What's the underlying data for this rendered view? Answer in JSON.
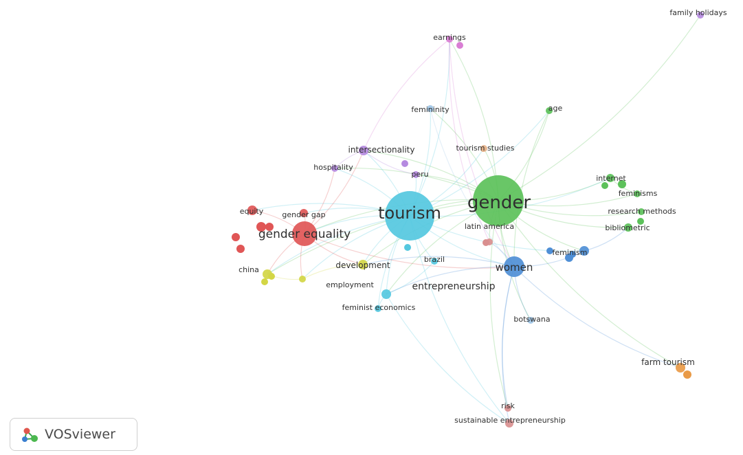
{
  "app": "VOSviewer",
  "logo": {
    "text": "VOSviewer",
    "icon": "vosviewer-network-icon"
  },
  "clusters": {
    "red": "#e05656",
    "cyan": "#55c8df",
    "green": "#5cc15a",
    "blue": "#4f8fd6",
    "purple": "#b58ae0",
    "yellow": "#d3d645",
    "pink": "#d97ed4",
    "orange": "#e99a47",
    "lightblue": "#9fc6e6",
    "peach": "#e6b48c",
    "rose": "#d98f8f"
  },
  "nodes": [
    {
      "id": "gender",
      "label": "gender",
      "cluster": "green",
      "weight": 10
    },
    {
      "id": "tourism",
      "label": "tourism",
      "cluster": "cyan",
      "weight": 9
    },
    {
      "id": "gender_equality",
      "label": "gender equality",
      "cluster": "red",
      "weight": 6
    },
    {
      "id": "women",
      "label": "women",
      "cluster": "blue",
      "weight": 5
    },
    {
      "id": "entrepreneurship",
      "label": "entrepreneurship",
      "cluster": "cyan",
      "weight": 4
    },
    {
      "id": "development",
      "label": "development",
      "cluster": "yellow",
      "weight": 3
    },
    {
      "id": "intersectionality",
      "label": "intersectionality",
      "cluster": "purple",
      "weight": 3
    },
    {
      "id": "feminism",
      "label": "feminism",
      "cluster": "blue",
      "weight": 3
    },
    {
      "id": "internet",
      "label": "internet",
      "cluster": "green",
      "weight": 3
    },
    {
      "id": "earnings",
      "label": "earnings",
      "cluster": "pink",
      "weight": 2
    },
    {
      "id": "femininity",
      "label": "femininity",
      "cluster": "lightblue",
      "weight": 2
    },
    {
      "id": "age",
      "label": "age",
      "cluster": "green",
      "weight": 2
    },
    {
      "id": "tourism_studies",
      "label": "tourism studies",
      "cluster": "peach",
      "weight": 2
    },
    {
      "id": "hospitality",
      "label": "hospitality",
      "cluster": "purple",
      "weight": 2
    },
    {
      "id": "peru",
      "label": "peru",
      "cluster": "purple",
      "weight": 2
    },
    {
      "id": "equity",
      "label": "equity",
      "cluster": "red",
      "weight": 2
    },
    {
      "id": "gender_gap",
      "label": "gender gap",
      "cluster": "red",
      "weight": 2
    },
    {
      "id": "latin_america",
      "label": "latin america",
      "cluster": "rose",
      "weight": 2
    },
    {
      "id": "feminisms",
      "label": "feminisms",
      "cluster": "green",
      "weight": 2
    },
    {
      "id": "research_methods",
      "label": "research methods",
      "cluster": "green",
      "weight": 2
    },
    {
      "id": "bibliometric",
      "label": "bibliometric",
      "cluster": "green",
      "weight": 2
    },
    {
      "id": "china",
      "label": "china",
      "cluster": "yellow",
      "weight": 2
    },
    {
      "id": "brazil",
      "label": "brazil",
      "cluster": "cyan",
      "weight": 2
    },
    {
      "id": "employment",
      "label": "employment",
      "cluster": "yellow",
      "weight": 2
    },
    {
      "id": "feminist_economics",
      "label": "feminist economics",
      "cluster": "cyan",
      "weight": 2
    },
    {
      "id": "botswana",
      "label": "botswana",
      "cluster": "lightblue",
      "weight": 1
    },
    {
      "id": "farm_tourism",
      "label": "farm tourism",
      "cluster": "orange",
      "weight": 2
    },
    {
      "id": "risk",
      "label": "risk",
      "cluster": "rose",
      "weight": 1
    },
    {
      "id": "sustainable_entrepreneurship",
      "label": "sustainable entrepreneurship",
      "cluster": "rose",
      "weight": 2
    },
    {
      "id": "family_holidays",
      "label": "family holidays",
      "cluster": "purple",
      "weight": 1
    }
  ],
  "links": [
    [
      "gender",
      "tourism"
    ],
    [
      "gender",
      "women"
    ],
    [
      "gender",
      "earnings"
    ],
    [
      "gender",
      "age"
    ],
    [
      "gender",
      "internet"
    ],
    [
      "gender",
      "feminisms"
    ],
    [
      "gender",
      "research_methods"
    ],
    [
      "gender",
      "bibliometric"
    ],
    [
      "gender",
      "feminism"
    ],
    [
      "gender",
      "gender_equality"
    ],
    [
      "gender",
      "intersectionality"
    ],
    [
      "gender",
      "femininity"
    ],
    [
      "gender",
      "family_holidays"
    ],
    [
      "gender",
      "farm_tourism"
    ],
    [
      "gender",
      "risk"
    ],
    [
      "gender",
      "latin_america"
    ],
    [
      "gender",
      "tourism_studies"
    ],
    [
      "gender",
      "entrepreneurship"
    ],
    [
      "gender",
      "development"
    ],
    [
      "gender",
      "botswana"
    ],
    [
      "gender",
      "hospitality"
    ],
    [
      "gender",
      "china"
    ],
    [
      "gender",
      "peru"
    ],
    [
      "tourism",
      "gender_equality"
    ],
    [
      "tourism",
      "women"
    ],
    [
      "tourism",
      "earnings"
    ],
    [
      "tourism",
      "femininity"
    ],
    [
      "tourism",
      "intersectionality"
    ],
    [
      "tourism",
      "hospitality"
    ],
    [
      "tourism",
      "entrepreneurship"
    ],
    [
      "tourism",
      "development"
    ],
    [
      "tourism",
      "china"
    ],
    [
      "tourism",
      "employment"
    ],
    [
      "tourism",
      "feminist_economics"
    ],
    [
      "tourism",
      "brazil"
    ],
    [
      "tourism",
      "peru"
    ],
    [
      "tourism",
      "internet"
    ],
    [
      "tourism",
      "feminism"
    ],
    [
      "tourism",
      "equity"
    ],
    [
      "tourism",
      "gender_gap"
    ],
    [
      "tourism",
      "age"
    ],
    [
      "tourism",
      "sustainable_entrepreneurship"
    ],
    [
      "tourism",
      "tourism_studies"
    ],
    [
      "gender_equality",
      "equity"
    ],
    [
      "gender_equality",
      "gender_gap"
    ],
    [
      "gender_equality",
      "china"
    ],
    [
      "gender_equality",
      "hospitality"
    ],
    [
      "gender_equality",
      "development"
    ],
    [
      "gender_equality",
      "women"
    ],
    [
      "gender_equality",
      "employment"
    ],
    [
      "gender_equality",
      "intersectionality"
    ],
    [
      "women",
      "feminism"
    ],
    [
      "women",
      "entrepreneurship"
    ],
    [
      "women",
      "botswana"
    ],
    [
      "women",
      "farm_tourism"
    ],
    [
      "women",
      "risk"
    ],
    [
      "women",
      "sustainable_entrepreneurship"
    ],
    [
      "women",
      "latin_america"
    ],
    [
      "women",
      "development"
    ],
    [
      "entrepreneurship",
      "sustainable_entrepreneurship"
    ],
    [
      "entrepreneurship",
      "feminist_economics"
    ],
    [
      "entrepreneurship",
      "brazil"
    ],
    [
      "earnings",
      "women"
    ],
    [
      "earnings",
      "intersectionality"
    ],
    [
      "earnings",
      "latin_america"
    ],
    [
      "intersectionality",
      "hospitality"
    ],
    [
      "intersectionality",
      "peru"
    ],
    [
      "femininity",
      "women"
    ],
    [
      "age",
      "women"
    ],
    [
      "internet",
      "feminisms"
    ],
    [
      "feminism",
      "bibliometric"
    ],
    [
      "development",
      "employment"
    ],
    [
      "china",
      "employment"
    ]
  ]
}
